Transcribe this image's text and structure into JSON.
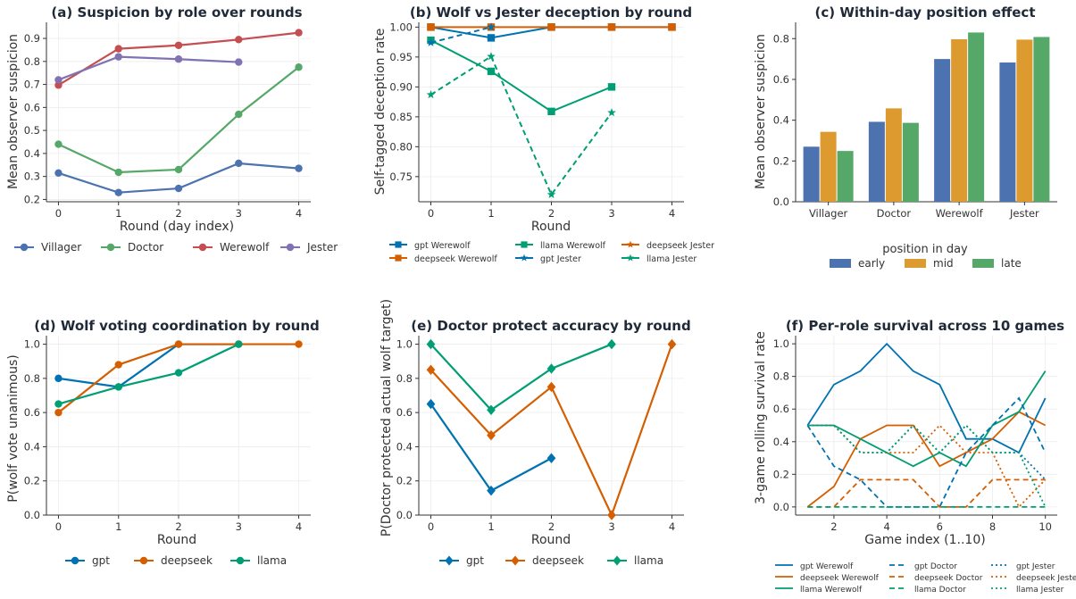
{
  "colors": {
    "villager": "#4c72b0",
    "doctor": "#55a868",
    "werewolf": "#c44e52",
    "jester": "#8172b2",
    "gpt": "#0072b2",
    "deepseek": "#d55e00",
    "llama": "#009e73",
    "early": "#4c72b0",
    "mid": "#dd9a2e",
    "late": "#55a868"
  },
  "chart_data": [
    {
      "id": "a",
      "type": "line",
      "title": "(a) Suspicion by role over rounds",
      "xlabel": "Round (day index)",
      "ylabel": "Mean observer suspicion",
      "x_ticks": [
        "0",
        "1",
        "2",
        "3",
        "4"
      ],
      "y_ticks": [
        "0.2",
        "0.3",
        "0.4",
        "0.5",
        "0.6",
        "0.7",
        "0.8",
        "0.9"
      ],
      "xlim": [
        -0.2,
        4.2
      ],
      "ylim": [
        0.19,
        0.97
      ],
      "series": [
        {
          "name": "Villager",
          "color_key": "villager",
          "x": [
            0,
            1,
            2,
            3,
            4
          ],
          "y": [
            0.315,
            0.23,
            0.248,
            0.357,
            0.335
          ]
        },
        {
          "name": "Doctor",
          "color_key": "doctor",
          "x": [
            0,
            1,
            2,
            3,
            4
          ],
          "y": [
            0.44,
            0.318,
            0.33,
            0.57,
            0.775
          ]
        },
        {
          "name": "Werewolf",
          "color_key": "werewolf",
          "x": [
            0,
            1,
            2,
            3,
            4
          ],
          "y": [
            0.697,
            0.855,
            0.87,
            0.895,
            0.925
          ]
        },
        {
          "name": "Jester",
          "color_key": "jester",
          "x": [
            0,
            1,
            2,
            3
          ],
          "y": [
            0.72,
            0.82,
            0.81,
            0.797
          ]
        }
      ]
    },
    {
      "id": "b",
      "type": "line",
      "title": "(b) Wolf vs Jester deception by round",
      "xlabel": "Round",
      "ylabel": "Self-tagged deception rate",
      "x_ticks": [
        "0",
        "1",
        "2",
        "3",
        "4"
      ],
      "y_ticks": [
        "0.75",
        "0.80",
        "0.85",
        "0.90",
        "0.95",
        "1.00"
      ],
      "xlim": [
        -0.2,
        4.2
      ],
      "ylim": [
        0.708,
        1.008
      ],
      "series": [
        {
          "name": "gpt Werewolf",
          "color_key": "gpt",
          "x": [
            0,
            1,
            2,
            3,
            4
          ],
          "y": [
            1.0,
            0.982,
            1.0,
            1.0,
            1.0
          ]
        },
        {
          "name": "deepseek Werewolf",
          "color_key": "deepseek",
          "x": [
            0,
            1,
            2,
            3,
            4
          ],
          "y": [
            1.0,
            1.0,
            1.0,
            1.0,
            1.0
          ]
        },
        {
          "name": "llama Werewolf",
          "color_key": "llama",
          "x": [
            0,
            1,
            2,
            3
          ],
          "y": [
            0.978,
            0.926,
            0.859,
            0.9
          ]
        },
        {
          "name": "gpt Jester",
          "color_key": "gpt",
          "x": [
            0,
            1
          ],
          "y": [
            0.974,
            1.0
          ]
        },
        {
          "name": "deepseek Jester",
          "color_key": "deepseek",
          "x": [],
          "y": []
        },
        {
          "name": "llama Jester",
          "color_key": "llama",
          "x": [
            0,
            1,
            2,
            3
          ],
          "y": [
            0.887,
            0.951,
            0.72,
            0.857
          ]
        }
      ]
    },
    {
      "id": "c",
      "type": "bar",
      "title": "(c) Within-day position effect",
      "xlabel": "",
      "ylabel": "Mean observer suspicion",
      "categories": [
        "Villager",
        "Doctor",
        "Werewolf",
        "Jester"
      ],
      "y_ticks": [
        "0.0",
        "0.2",
        "0.4",
        "0.6",
        "0.8"
      ],
      "ylim": [
        0,
        0.88
      ],
      "legend_title": "position in day",
      "series": [
        {
          "name": "early",
          "color_key": "early",
          "values": [
            0.27,
            0.392,
            0.7,
            0.683
          ]
        },
        {
          "name": "mid",
          "color_key": "mid",
          "values": [
            0.343,
            0.458,
            0.797,
            0.795
          ]
        },
        {
          "name": "late",
          "color_key": "late",
          "values": [
            0.249,
            0.387,
            0.83,
            0.808
          ]
        }
      ]
    },
    {
      "id": "d",
      "type": "line",
      "title": "(d) Wolf voting coordination by round",
      "xlabel": "Round",
      "ylabel": "P(wolf vote unanimous)",
      "x_ticks": [
        "0",
        "1",
        "2",
        "3",
        "4"
      ],
      "y_ticks": [
        "0.0",
        "0.2",
        "0.4",
        "0.6",
        "0.8",
        "1.0"
      ],
      "xlim": [
        -0.2,
        4.2
      ],
      "ylim": [
        0,
        1.05
      ],
      "series": [
        {
          "name": "gpt",
          "color_key": "gpt",
          "x": [
            0,
            1,
            2,
            3
          ],
          "y": [
            0.8,
            0.75,
            1.0,
            1.0
          ]
        },
        {
          "name": "deepseek",
          "color_key": "deepseek",
          "x": [
            0,
            1,
            2,
            3,
            4
          ],
          "y": [
            0.6,
            0.88,
            1.0,
            1.0,
            1.0
          ]
        },
        {
          "name": "llama",
          "color_key": "llama",
          "x": [
            0,
            1,
            2,
            3
          ],
          "y": [
            0.65,
            0.75,
            0.833,
            1.0
          ]
        }
      ]
    },
    {
      "id": "e",
      "type": "line",
      "title": "(e) Doctor protect accuracy by round",
      "xlabel": "Round",
      "ylabel": "P(Doctor protected actual wolf target)",
      "x_ticks": [
        "0",
        "1",
        "2",
        "3",
        "4"
      ],
      "y_ticks": [
        "0.0",
        "0.2",
        "0.4",
        "0.6",
        "0.8",
        "1.0"
      ],
      "xlim": [
        -0.2,
        4.2
      ],
      "ylim": [
        0,
        1.05
      ],
      "series": [
        {
          "name": "gpt",
          "color_key": "gpt",
          "x": [
            0,
            1,
            2
          ],
          "y": [
            0.65,
            0.143,
            0.333
          ]
        },
        {
          "name": "deepseek",
          "color_key": "deepseek",
          "x": [
            0,
            1,
            2,
            3,
            4
          ],
          "y": [
            0.85,
            0.467,
            0.75,
            0.0,
            1.0
          ]
        },
        {
          "name": "llama",
          "color_key": "llama",
          "x": [
            0,
            1,
            2,
            3
          ],
          "y": [
            1.0,
            0.615,
            0.857,
            1.0
          ]
        }
      ]
    },
    {
      "id": "f",
      "type": "line",
      "title": "(f) Per-role survival across 10 games",
      "xlabel": "Game index (1..10)",
      "ylabel": "3-game rolling survival rate",
      "x_ticks": [
        "2",
        "4",
        "6",
        "8",
        "10"
      ],
      "y_ticks": [
        "0.0",
        "0.2",
        "0.4",
        "0.6",
        "0.8",
        "1.0"
      ],
      "xlim": [
        0.55,
        10.45
      ],
      "ylim": [
        -0.05,
        1.05
      ],
      "series": [
        {
          "name": "gpt Werewolf",
          "color_key": "gpt",
          "x": [
            1,
            2,
            3,
            4,
            5,
            6,
            7,
            8,
            9,
            10
          ],
          "y": [
            0.5,
            0.75,
            0.833,
            1.0,
            0.833,
            0.75,
            0.417,
            0.417,
            0.333,
            0.667
          ]
        },
        {
          "name": "deepseek Werewolf",
          "color_key": "deepseek",
          "x": [
            1,
            2,
            3,
            4,
            5,
            6,
            7,
            8,
            9,
            10
          ],
          "y": [
            0.0,
            0.125,
            0.417,
            0.5,
            0.5,
            0.25,
            0.333,
            0.417,
            0.583,
            0.5
          ]
        },
        {
          "name": "llama Werewolf",
          "color_key": "llama",
          "x": [
            1,
            2,
            3,
            4,
            5,
            6,
            7,
            8,
            9,
            10
          ],
          "y": [
            0.5,
            0.5,
            0.417,
            0.333,
            0.25,
            0.333,
            0.25,
            0.5,
            0.583,
            0.833
          ]
        },
        {
          "name": "gpt Doctor",
          "color_key": "gpt",
          "x": [
            1,
            2,
            3,
            4,
            5,
            6,
            7,
            8,
            9,
            10
          ],
          "y": [
            0.5,
            0.25,
            0.167,
            0.0,
            0.0,
            0.0,
            0.333,
            0.5,
            0.667,
            0.333
          ]
        },
        {
          "name": "deepseek Doctor",
          "color_key": "deepseek",
          "x": [
            1,
            2,
            3,
            4,
            5,
            6,
            7,
            8,
            9,
            10
          ],
          "y": [
            0.0,
            0.0,
            0.167,
            0.167,
            0.167,
            0.0,
            0.0,
            0.167,
            0.167,
            0.167
          ]
        },
        {
          "name": "llama Doctor",
          "color_key": "llama",
          "x": [
            1,
            2,
            3,
            4,
            5,
            6,
            7,
            8,
            9,
            10
          ],
          "y": [
            0.0,
            0.0,
            0.0,
            0.0,
            0.0,
            0.0,
            0.0,
            0.0,
            0.0,
            0.0
          ]
        },
        {
          "name": "gpt Jester",
          "color_key": "gpt",
          "x": [
            1,
            2,
            3,
            4,
            5,
            6,
            7,
            8,
            9,
            10
          ],
          "y": [
            0.5,
            0.5,
            0.333,
            0.333,
            0.5,
            0.333,
            0.5,
            0.333,
            0.333,
            0.167
          ]
        },
        {
          "name": "deepseek Jester",
          "color_key": "deepseek",
          "x": [
            1,
            2,
            3,
            4,
            5,
            6,
            7,
            8,
            9,
            10
          ],
          "y": [
            0.5,
            0.5,
            0.333,
            0.333,
            0.333,
            0.5,
            0.333,
            0.333,
            0.0,
            0.167
          ]
        },
        {
          "name": "llama Jester",
          "color_key": "llama",
          "x": [
            1,
            2,
            3,
            4,
            5,
            6,
            7,
            8,
            9,
            10
          ],
          "y": [
            0.5,
            0.5,
            0.333,
            0.333,
            0.5,
            0.333,
            0.5,
            0.333,
            0.333,
            0.0
          ]
        }
      ]
    }
  ]
}
